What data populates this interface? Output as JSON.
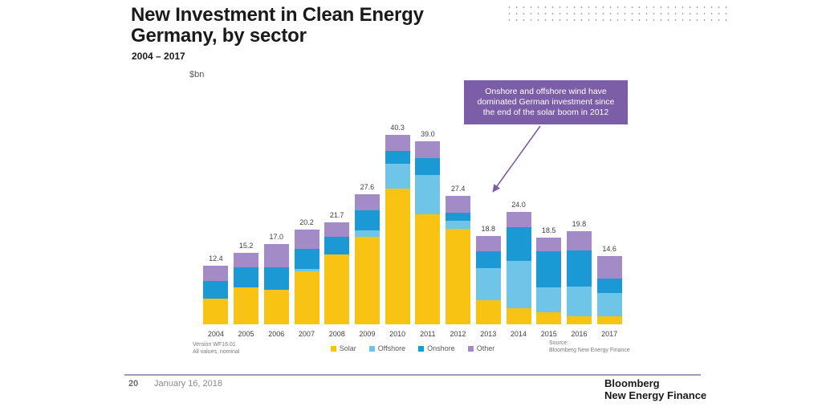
{
  "header": {
    "title_line1": "New Investment in Clean Energy",
    "title_line2": "Germany, by sector",
    "subtitle": "2004 – 2017",
    "unit_label": "$bn"
  },
  "annotation": {
    "text": "Onshore and offshore wind have dominated German investment since the end of the solar boom in 2012",
    "bg_color": "#7B5EA7"
  },
  "chart_data": {
    "type": "bar",
    "stacked": true,
    "title": "New Investment in Clean Energy Germany, by sector",
    "subtitle": "2004 – 2017",
    "ylabel": "$bn",
    "xlabel": "",
    "ylim": [
      0,
      42
    ],
    "grid": false,
    "legend_position": "bottom",
    "categories": [
      "2004",
      "2005",
      "2006",
      "2007",
      "2008",
      "2009",
      "2010",
      "2011",
      "2012",
      "2013",
      "2014",
      "2015",
      "2016",
      "2017"
    ],
    "series": [
      {
        "name": "Solar",
        "color": "#F9C313",
        "values": [
          5.5,
          7.9,
          7.4,
          11.2,
          14.9,
          18.6,
          28.8,
          23.4,
          20.3,
          5.2,
          3.5,
          2.6,
          1.7,
          1.7
        ]
      },
      {
        "name": "Offshore",
        "color": "#6EC5E8",
        "values": [
          0.0,
          0.0,
          0.0,
          0.6,
          0.0,
          1.4,
          5.4,
          8.3,
          1.7,
          6.8,
          10.0,
          5.3,
          6.4,
          4.9
        ]
      },
      {
        "name": "Onshore",
        "color": "#1A99D5",
        "values": [
          3.8,
          4.2,
          4.7,
          4.2,
          3.7,
          4.2,
          2.7,
          3.7,
          1.7,
          3.5,
          7.1,
          7.7,
          7.6,
          3.1
        ]
      },
      {
        "name": "Other",
        "color": "#A28BC6",
        "values": [
          3.1,
          3.1,
          4.9,
          4.2,
          3.1,
          3.4,
          3.4,
          3.6,
          3.7,
          3.3,
          3.4,
          2.9,
          4.1,
          4.9
        ]
      }
    ],
    "totals": [
      12.4,
      15.2,
      17.0,
      20.2,
      21.7,
      27.6,
      40.3,
      39.0,
      27.4,
      18.8,
      24.0,
      18.5,
      19.8,
      14.6
    ]
  },
  "footnotes": {
    "version_line1": "Version WF16.01",
    "version_line2": "All values, nominal",
    "source_line1": "Source:",
    "source_line2": "Bloomberg New Energy Finance"
  },
  "footer": {
    "page_number": "20",
    "date": "January 16, 2018",
    "logo_line1": "Bloomberg",
    "logo_line2": "New Energy Finance"
  },
  "colors": {
    "accent_purple": "#7B5EA7",
    "footer_rule": "#9a9bbd"
  }
}
